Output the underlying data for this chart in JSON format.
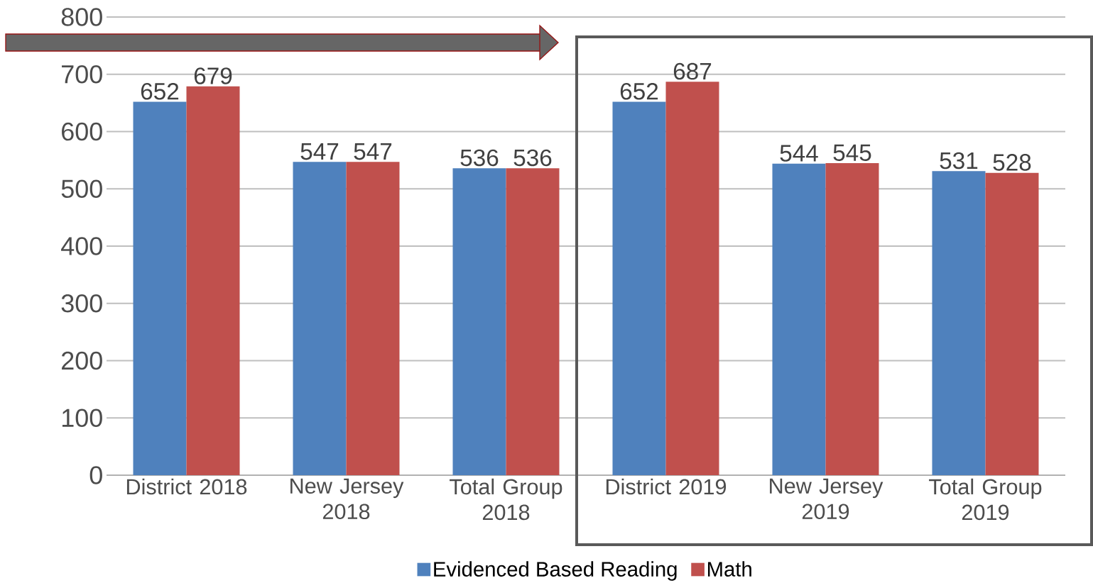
{
  "chart_data": {
    "type": "bar",
    "categories": [
      "District 2018",
      "New Jersey 2018",
      "Total Group 2018",
      "District 2019",
      "New Jersey 2019",
      "Total Group 2019"
    ],
    "series": [
      {
        "name": "Evidenced Based Reading",
        "color": "#4f81bd",
        "values": [
          652,
          547,
          536,
          652,
          544,
          531
        ]
      },
      {
        "name": "Math",
        "color": "#c0504d",
        "values": [
          679,
          547,
          536,
          687,
          545,
          528
        ]
      }
    ],
    "ylim": [
      0,
      800
    ],
    "yticks": [
      0,
      100,
      200,
      300,
      400,
      500,
      600,
      700,
      800
    ],
    "grid": "y",
    "legend": "bottom",
    "data_labels": true
  }
}
